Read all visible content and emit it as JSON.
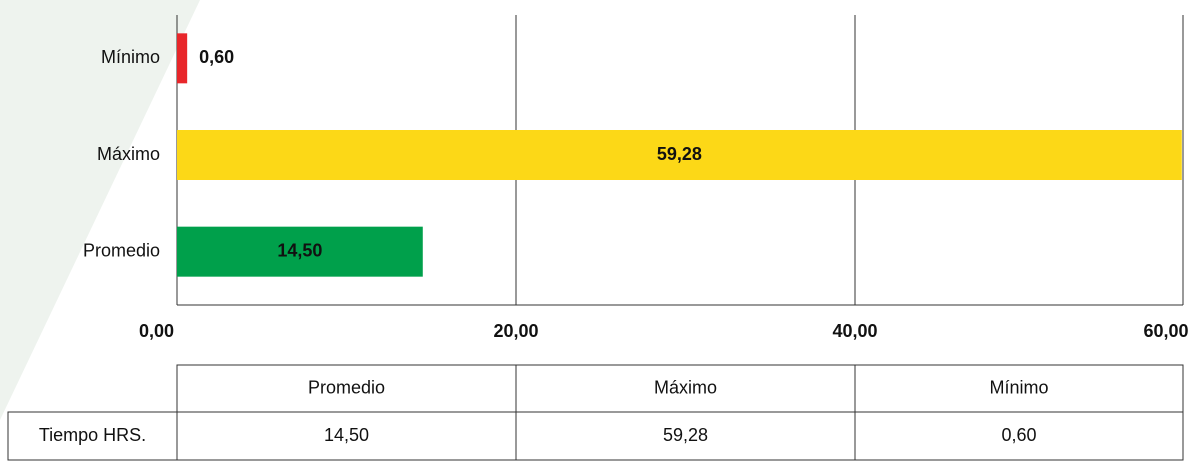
{
  "chart_data": {
    "type": "bar",
    "orientation": "horizontal",
    "categories": [
      "Mínimo",
      "Máximo",
      "Promedio"
    ],
    "values": [
      0.6,
      59.28,
      14.5
    ],
    "value_labels": [
      "0,60",
      "59,28",
      "14,50"
    ],
    "colors": [
      "#e8262a",
      "#fcd817",
      "#00a04b"
    ],
    "xlim": [
      0,
      60
    ],
    "xticks": [
      {
        "value": 0,
        "label": "0,00"
      },
      {
        "value": 20,
        "label": "20,00"
      },
      {
        "value": 40,
        "label": "40,00"
      },
      {
        "value": 60,
        "label": "60,00"
      }
    ],
    "grid": true
  },
  "table": {
    "row_label": "Tiempo HRS."
  }
}
